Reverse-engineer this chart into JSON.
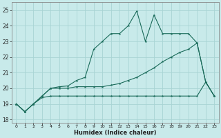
{
  "title": "",
  "xlabel": "Humidex (Indice chaleur)",
  "bg_color": "#c8eaea",
  "grid_color": "#a8d4d4",
  "line_color": "#1a6b5a",
  "xlim": [
    -0.5,
    23.5
  ],
  "ylim": [
    17.8,
    25.5
  ],
  "xticks": [
    0,
    1,
    2,
    3,
    4,
    5,
    6,
    7,
    8,
    9,
    10,
    11,
    12,
    13,
    14,
    15,
    16,
    17,
    18,
    19,
    20,
    21,
    22,
    23
  ],
  "yticks": [
    18,
    19,
    20,
    21,
    22,
    23,
    24,
    25
  ],
  "line1_x": [
    0,
    1,
    2,
    3,
    4,
    5,
    6,
    7,
    8,
    9,
    10,
    11,
    12,
    13,
    14,
    15,
    16,
    17,
    18,
    19,
    20,
    21,
    22,
    23
  ],
  "line1_y": [
    19.0,
    18.5,
    19.0,
    19.5,
    20.0,
    20.1,
    20.15,
    20.5,
    20.7,
    22.5,
    23.0,
    23.5,
    23.5,
    24.0,
    24.95,
    23.0,
    24.7,
    23.5,
    23.5,
    23.5,
    23.5,
    22.9,
    20.4,
    19.5
  ],
  "line2_x": [
    0,
    1,
    2,
    3,
    4,
    5,
    6,
    7,
    8,
    9,
    10,
    11,
    12,
    13,
    14,
    15,
    16,
    17,
    18,
    19,
    20,
    21,
    22,
    23
  ],
  "line2_y": [
    19.0,
    18.5,
    19.0,
    19.5,
    20.0,
    20.0,
    20.0,
    20.1,
    20.1,
    20.1,
    20.1,
    20.2,
    20.3,
    20.5,
    20.7,
    21.0,
    21.3,
    21.7,
    22.0,
    22.3,
    22.5,
    22.9,
    20.4,
    19.5
  ],
  "line3_x": [
    0,
    1,
    2,
    3,
    4,
    5,
    6,
    7,
    8,
    9,
    10,
    11,
    12,
    13,
    14,
    15,
    16,
    17,
    18,
    19,
    20,
    21,
    22,
    23
  ],
  "line3_y": [
    19.0,
    18.5,
    19.0,
    19.4,
    19.5,
    19.5,
    19.5,
    19.5,
    19.5,
    19.5,
    19.5,
    19.5,
    19.5,
    19.5,
    19.5,
    19.5,
    19.5,
    19.5,
    19.5,
    19.5,
    19.5,
    19.5,
    20.4,
    19.5
  ]
}
